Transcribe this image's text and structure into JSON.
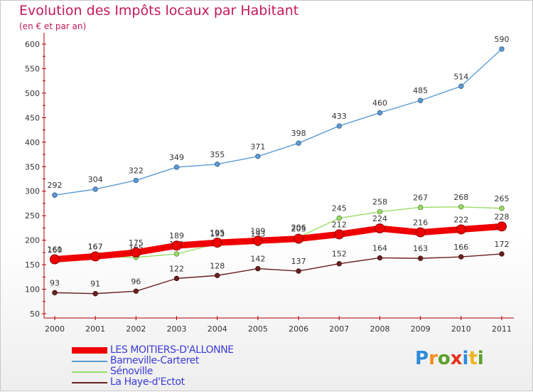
{
  "header": {
    "title": "Evolution des Impôts locaux par Habitant",
    "subtitle": "(en € et par an)"
  },
  "logo": {
    "text": "Proxiti",
    "letters": [
      "P",
      "r",
      "o",
      "x",
      "i",
      "t",
      "i"
    ]
  },
  "chart_data": {
    "type": "line",
    "x": [
      "2000",
      "2001",
      "2002",
      "2003",
      "2004",
      "2005",
      "2006",
      "2007",
      "2008",
      "2009",
      "2010",
      "2011"
    ],
    "ylim": [
      50,
      600
    ],
    "yticks": [
      50,
      100,
      150,
      200,
      250,
      300,
      350,
      400,
      450,
      500,
      550,
      600
    ],
    "grid": false,
    "legend": "bottom-left",
    "series": [
      {
        "name": "La Haye-d'Ectot",
        "color": "#6b1f1f",
        "values": [
          93,
          91,
          96,
          122,
          128,
          142,
          137,
          152,
          164,
          163,
          166,
          172
        ]
      },
      {
        "name": "Sénoville",
        "color": "#99dd66",
        "values": [
          160,
          167,
          165,
          172,
          193,
          193,
          206,
          245,
          258,
          267,
          268,
          265
        ]
      },
      {
        "name": "Barneville-Carteret",
        "color": "#5b9bd5",
        "values": [
          292,
          304,
          322,
          349,
          355,
          371,
          398,
          433,
          460,
          485,
          514,
          590
        ]
      },
      {
        "name": "LES MOITIERS-D'ALLONNE",
        "color": "#ee0000",
        "values": [
          161,
          167,
          175,
          189,
          195,
          199,
          203,
          212,
          224,
          216,
          222,
          228
        ]
      }
    ],
    "legend_order": [
      "LES MOITIERS-D'ALLONNE",
      "Barneville-Carteret",
      "Sénoville",
      "La Haye-d'Ectot"
    ]
  }
}
